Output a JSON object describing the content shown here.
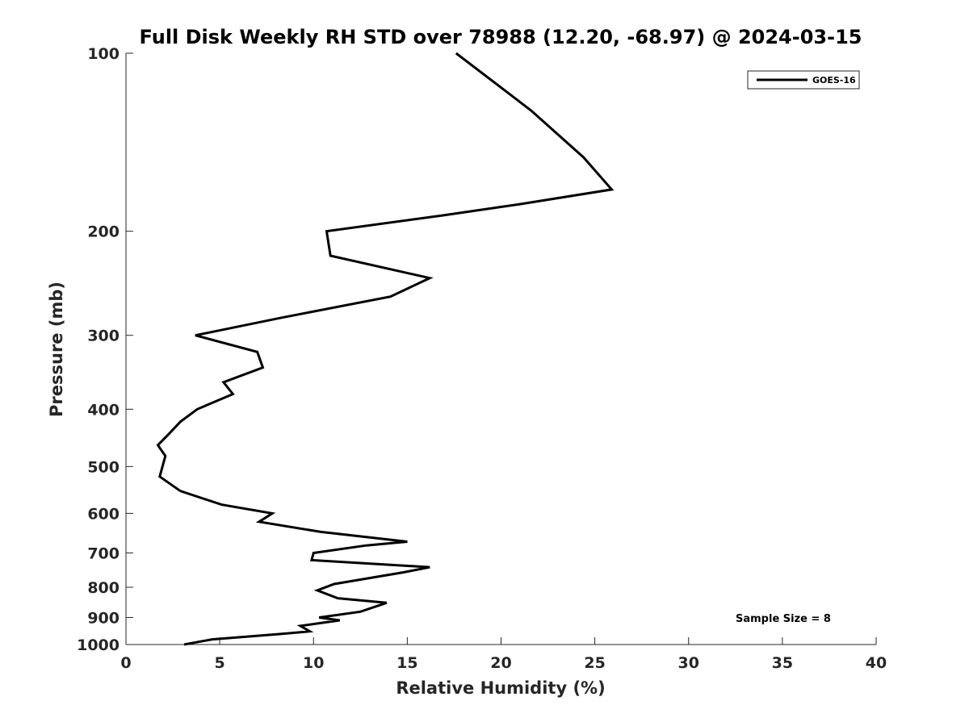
{
  "chart_data": {
    "type": "line",
    "title": "Full Disk Weekly RH STD over 78988 (12.20, -68.97) @ 2024-03-15",
    "xlabel": "Relative Humidity (%)",
    "ylabel": "Pressure (mb)",
    "xlim": [
      0,
      40
    ],
    "ylim": [
      1000,
      100
    ],
    "yscale": "log",
    "y_reversed": true,
    "xticks": [
      0,
      5,
      10,
      15,
      20,
      25,
      30,
      35,
      40
    ],
    "yticks": [
      100,
      200,
      300,
      400,
      500,
      600,
      700,
      800,
      900,
      1000
    ],
    "grid": false,
    "legend_position": "top-right",
    "series": [
      {
        "name": "GOES-16",
        "color": "#000000",
        "points": [
          [
            17.6,
            100
          ],
          [
            21.6,
            125
          ],
          [
            24.4,
            150
          ],
          [
            25.9,
            170
          ],
          [
            21.0,
            180
          ],
          [
            16.9,
            188
          ],
          [
            10.7,
            200
          ],
          [
            10.9,
            220
          ],
          [
            16.2,
            240
          ],
          [
            14.1,
            258
          ],
          [
            8.3,
            280
          ],
          [
            3.7,
            300
          ],
          [
            7.0,
            320
          ],
          [
            7.3,
            340
          ],
          [
            5.2,
            360
          ],
          [
            5.7,
            377
          ],
          [
            3.8,
            400
          ],
          [
            2.9,
            420
          ],
          [
            2.3,
            440
          ],
          [
            1.7,
            460
          ],
          [
            2.1,
            480
          ],
          [
            1.8,
            520
          ],
          [
            2.9,
            550
          ],
          [
            5.1,
            580
          ],
          [
            7.8,
            600
          ],
          [
            7.1,
            620
          ],
          [
            10.4,
            645
          ],
          [
            15.0,
            670
          ],
          [
            12.8,
            680
          ],
          [
            10.0,
            700
          ],
          [
            9.9,
            720
          ],
          [
            16.2,
            740
          ],
          [
            14.8,
            755
          ],
          [
            11.1,
            790
          ],
          [
            10.2,
            810
          ],
          [
            11.3,
            835
          ],
          [
            13.9,
            850
          ],
          [
            12.5,
            880
          ],
          [
            10.3,
            900
          ],
          [
            11.4,
            910
          ],
          [
            9.3,
            930
          ],
          [
            9.8,
            950
          ],
          [
            8.2,
            960
          ],
          [
            4.6,
            980
          ],
          [
            3.1,
            1000
          ]
        ]
      }
    ],
    "annotations": [
      "Sample Size = 8"
    ]
  }
}
